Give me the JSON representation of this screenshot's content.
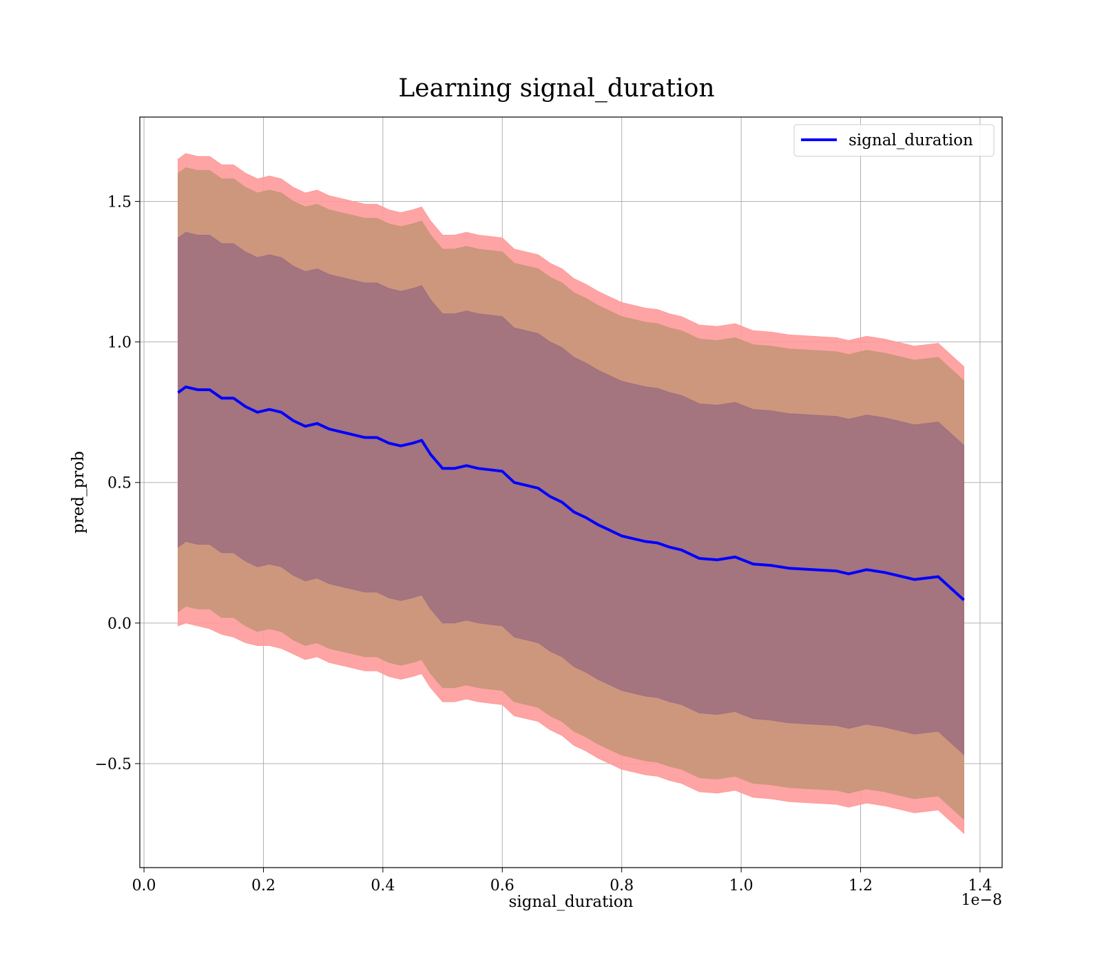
{
  "chart_data": {
    "type": "area",
    "title": "Learning signal_duration",
    "xlabel": "signal_duration",
    "ylabel": "pred_prob",
    "x_offset_label": "1e−8",
    "xlim": [
      -0.007,
      1.437
    ],
    "ylim": [
      -0.87,
      1.8
    ],
    "x_ticks": [
      0.0,
      0.2,
      0.4,
      0.6,
      0.8,
      1.0,
      1.2,
      1.4
    ],
    "x_tick_labels": [
      "0.0",
      "0.2",
      "0.4",
      "0.6",
      "0.8",
      "1.0",
      "1.2",
      "1.4"
    ],
    "y_ticks": [
      -0.5,
      0.0,
      0.5,
      1.0,
      1.5
    ],
    "y_tick_labels": [
      "−0.5",
      "0.0",
      "0.5",
      "1.0",
      "1.5"
    ],
    "grid": true,
    "legend": {
      "placement": "top-right",
      "entries": [
        "signal_duration"
      ]
    },
    "colors": {
      "line": "#0000ff",
      "outer_band": "#ff9a9a",
      "middle_band": "#c8967a",
      "inner_band": "#a07080"
    },
    "x": [
      0.057,
      0.07,
      0.09,
      0.11,
      0.13,
      0.15,
      0.17,
      0.19,
      0.21,
      0.23,
      0.25,
      0.27,
      0.29,
      0.31,
      0.33,
      0.35,
      0.37,
      0.39,
      0.41,
      0.43,
      0.45,
      0.465,
      0.48,
      0.5,
      0.52,
      0.54,
      0.56,
      0.58,
      0.6,
      0.62,
      0.64,
      0.66,
      0.68,
      0.7,
      0.72,
      0.74,
      0.76,
      0.78,
      0.8,
      0.82,
      0.84,
      0.86,
      0.88,
      0.9,
      0.93,
      0.96,
      0.99,
      1.02,
      1.05,
      1.08,
      1.12,
      1.16,
      1.18,
      1.21,
      1.24,
      1.29,
      1.33,
      1.373
    ],
    "series": [
      {
        "name": "signal_duration",
        "values": [
          0.82,
          0.84,
          0.83,
          0.83,
          0.8,
          0.8,
          0.77,
          0.75,
          0.76,
          0.75,
          0.72,
          0.7,
          0.71,
          0.69,
          0.68,
          0.67,
          0.66,
          0.66,
          0.64,
          0.63,
          0.64,
          0.65,
          0.6,
          0.55,
          0.55,
          0.56,
          0.55,
          0.545,
          0.54,
          0.5,
          0.49,
          0.48,
          0.45,
          0.43,
          0.395,
          0.375,
          0.35,
          0.33,
          0.31,
          0.3,
          0.29,
          0.285,
          0.27,
          0.26,
          0.23,
          0.225,
          0.235,
          0.21,
          0.205,
          0.195,
          0.19,
          0.185,
          0.175,
          0.19,
          0.18,
          0.155,
          0.165,
          0.082
        ]
      }
    ],
    "bands": [
      {
        "lower": [
          -0.01,
          0.0,
          -0.01,
          -0.02,
          -0.04,
          -0.05,
          -0.07,
          -0.08,
          -0.08,
          -0.09,
          -0.11,
          -0.13,
          -0.12,
          -0.14,
          -0.15,
          -0.16,
          -0.17,
          -0.17,
          -0.19,
          -0.2,
          -0.19,
          -0.18,
          -0.23,
          -0.28,
          -0.28,
          -0.27,
          -0.28,
          -0.285,
          -0.29,
          -0.33,
          -0.34,
          -0.35,
          -0.38,
          -0.4,
          -0.435,
          -0.455,
          -0.48,
          -0.5,
          -0.52,
          -0.53,
          -0.54,
          -0.545,
          -0.56,
          -0.57,
          -0.6,
          -0.605,
          -0.595,
          -0.62,
          -0.625,
          -0.635,
          -0.64,
          -0.645,
          -0.655,
          -0.64,
          -0.65,
          -0.675,
          -0.665,
          -0.748
        ],
        "upper": [
          1.65,
          1.67,
          1.66,
          1.66,
          1.63,
          1.63,
          1.6,
          1.58,
          1.59,
          1.58,
          1.55,
          1.53,
          1.54,
          1.52,
          1.51,
          1.5,
          1.49,
          1.49,
          1.47,
          1.46,
          1.47,
          1.48,
          1.43,
          1.38,
          1.38,
          1.39,
          1.38,
          1.375,
          1.37,
          1.33,
          1.32,
          1.31,
          1.28,
          1.26,
          1.225,
          1.205,
          1.18,
          1.16,
          1.14,
          1.13,
          1.12,
          1.115,
          1.1,
          1.09,
          1.06,
          1.055,
          1.065,
          1.04,
          1.035,
          1.025,
          1.02,
          1.015,
          1.005,
          1.02,
          1.01,
          0.985,
          0.995,
          0.912
        ]
      },
      {
        "lower": [
          0.04,
          0.06,
          0.05,
          0.05,
          0.02,
          0.02,
          -0.01,
          -0.03,
          -0.02,
          -0.03,
          -0.06,
          -0.08,
          -0.07,
          -0.09,
          -0.1,
          -0.11,
          -0.12,
          -0.12,
          -0.14,
          -0.15,
          -0.14,
          -0.13,
          -0.18,
          -0.23,
          -0.23,
          -0.22,
          -0.23,
          -0.235,
          -0.24,
          -0.28,
          -0.29,
          -0.3,
          -0.33,
          -0.35,
          -0.385,
          -0.405,
          -0.43,
          -0.45,
          -0.47,
          -0.48,
          -0.49,
          -0.495,
          -0.51,
          -0.52,
          -0.55,
          -0.555,
          -0.545,
          -0.57,
          -0.575,
          -0.585,
          -0.59,
          -0.595,
          -0.605,
          -0.59,
          -0.6,
          -0.625,
          -0.615,
          -0.698
        ],
        "upper": [
          1.6,
          1.62,
          1.61,
          1.61,
          1.58,
          1.58,
          1.55,
          1.53,
          1.54,
          1.53,
          1.5,
          1.48,
          1.49,
          1.47,
          1.46,
          1.45,
          1.44,
          1.44,
          1.42,
          1.41,
          1.42,
          1.43,
          1.38,
          1.33,
          1.33,
          1.34,
          1.33,
          1.325,
          1.32,
          1.28,
          1.27,
          1.26,
          1.23,
          1.21,
          1.175,
          1.155,
          1.13,
          1.11,
          1.09,
          1.08,
          1.07,
          1.065,
          1.05,
          1.04,
          1.01,
          1.005,
          1.015,
          0.99,
          0.985,
          0.975,
          0.97,
          0.965,
          0.955,
          0.97,
          0.96,
          0.935,
          0.945,
          0.862
        ]
      },
      {
        "lower": [
          0.27,
          0.29,
          0.28,
          0.28,
          0.25,
          0.25,
          0.22,
          0.2,
          0.21,
          0.2,
          0.17,
          0.15,
          0.16,
          0.14,
          0.13,
          0.12,
          0.11,
          0.11,
          0.09,
          0.08,
          0.09,
          0.1,
          0.05,
          0.0,
          0.0,
          0.01,
          0.0,
          -0.005,
          -0.01,
          -0.05,
          -0.06,
          -0.07,
          -0.1,
          -0.12,
          -0.155,
          -0.175,
          -0.2,
          -0.22,
          -0.24,
          -0.25,
          -0.26,
          -0.265,
          -0.28,
          -0.29,
          -0.32,
          -0.325,
          -0.315,
          -0.34,
          -0.345,
          -0.355,
          -0.36,
          -0.365,
          -0.375,
          -0.36,
          -0.37,
          -0.395,
          -0.385,
          -0.468
        ],
        "upper": [
          1.37,
          1.39,
          1.38,
          1.38,
          1.35,
          1.35,
          1.32,
          1.3,
          1.31,
          1.3,
          1.27,
          1.25,
          1.26,
          1.24,
          1.23,
          1.22,
          1.21,
          1.21,
          1.19,
          1.18,
          1.19,
          1.2,
          1.15,
          1.1,
          1.1,
          1.11,
          1.1,
          1.095,
          1.09,
          1.05,
          1.04,
          1.03,
          1.0,
          0.98,
          0.945,
          0.925,
          0.9,
          0.88,
          0.86,
          0.85,
          0.84,
          0.835,
          0.82,
          0.81,
          0.78,
          0.775,
          0.785,
          0.76,
          0.755,
          0.745,
          0.74,
          0.735,
          0.725,
          0.74,
          0.73,
          0.705,
          0.715,
          0.632
        ]
      }
    ]
  }
}
